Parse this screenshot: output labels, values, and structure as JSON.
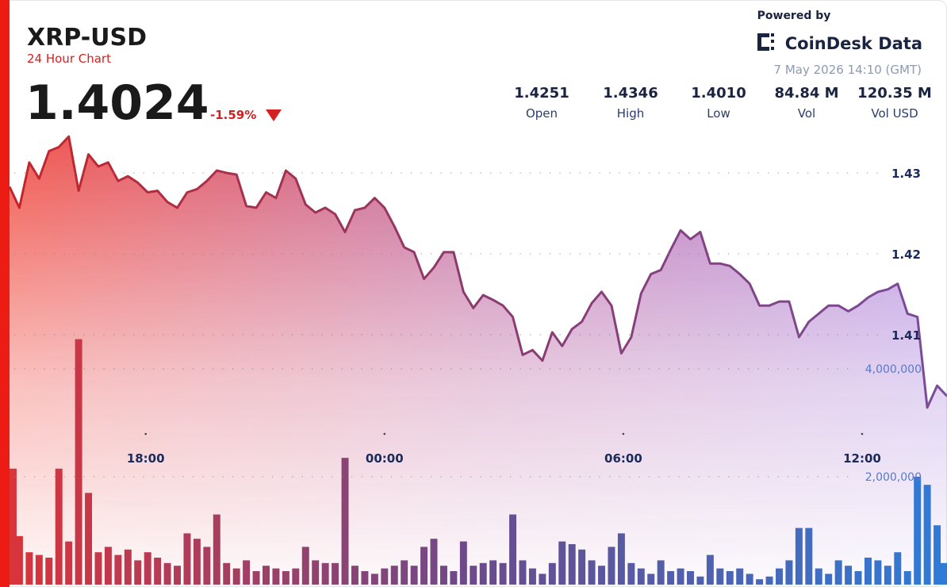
{
  "header": {
    "price": "1.4024",
    "change": "-1.59%",
    "stats": [
      {
        "value": "1.4251",
        "label": "Open"
      },
      {
        "value": "1.4346",
        "label": "High"
      },
      {
        "value": "1.4010",
        "label": "Low"
      },
      {
        "value": "84.84 M",
        "label": "Vol"
      },
      {
        "value": "120.35 M",
        "label": "Vol USD"
      }
    ],
    "powered_by": "Powered by",
    "brand": "CoinDesk Data",
    "timestamp": "7 May 2026 14:10 (GMT)"
  },
  "chart_data": {
    "type": "area",
    "title": "XRP-USD",
    "subtitle": "24 Hour Chart",
    "categories": [
      null,
      null,
      null,
      null,
      null,
      null,
      null,
      null,
      null,
      null,
      null,
      null,
      null,
      null,
      null,
      null,
      null,
      null,
      null,
      null,
      null,
      null,
      null,
      null,
      null,
      null,
      null,
      null,
      null,
      null,
      null,
      null,
      null,
      null,
      null,
      null,
      null,
      null,
      null,
      null,
      null,
      null,
      null,
      null,
      null,
      null,
      null,
      null,
      null,
      null,
      null,
      null,
      null,
      null,
      null,
      null,
      null,
      null,
      null,
      null,
      null,
      null,
      null,
      null,
      null,
      null,
      null,
      null,
      null,
      null,
      null,
      null,
      null,
      null,
      null,
      null,
      null,
      null,
      null,
      null,
      null,
      null,
      null,
      null,
      null,
      null,
      null,
      null,
      null,
      null,
      null,
      null,
      null,
      null,
      null,
      null
    ],
    "xticks": [
      {
        "value": 13.8,
        "label": "18:00"
      },
      {
        "value": 38,
        "label": "00:00"
      },
      {
        "value": 62.2,
        "label": "06:00"
      },
      {
        "value": 86.4,
        "label": "12:00"
      }
    ],
    "ylim": [
      1.3791,
      1.4352
    ],
    "yticks": [
      1.41,
      1.42,
      1.43
    ],
    "y2lim": [
      0,
      8410000
    ],
    "y2ticks": [
      {
        "value": 2000000,
        "label": "2,000,000"
      },
      {
        "value": 4000000,
        "label": "4,000,000"
      }
    ],
    "grid": true,
    "series": [
      {
        "type": "area",
        "colors": [
          "#c3262b",
          "#8c3a6e",
          "#7a4c9a"
        ],
        "values": [
          1.4283,
          1.4257,
          1.4313,
          1.4293,
          1.4327,
          1.4332,
          1.4345,
          1.4278,
          1.4323,
          1.4308,
          1.4313,
          1.429,
          1.4296,
          1.4288,
          1.4276,
          1.4278,
          1.4264,
          1.4257,
          1.4276,
          1.428,
          1.429,
          1.4303,
          1.43,
          1.4298,
          1.4259,
          1.4257,
          1.4276,
          1.4269,
          1.4303,
          1.4293,
          1.4261,
          1.4251,
          1.4257,
          1.4249,
          1.4227,
          1.4254,
          1.4257,
          1.4269,
          1.4257,
          1.4234,
          1.4208,
          1.4202,
          1.4169,
          1.4183,
          1.4202,
          1.4202,
          1.4153,
          1.4133,
          1.4149,
          1.4143,
          1.4136,
          1.4122,
          1.4075,
          1.4081,
          1.4068,
          1.4103,
          1.4086,
          1.4107,
          1.4116,
          1.4139,
          1.4153,
          1.4136,
          1.4077,
          1.4097,
          1.4151,
          1.4175,
          1.418,
          1.4205,
          1.4229,
          1.4218,
          1.4227,
          1.4188,
          1.4188,
          1.4185,
          1.4175,
          1.4163,
          1.4136,
          1.4136,
          1.4141,
          1.4141,
          1.4097,
          1.4116,
          1.4126,
          1.4136,
          1.4136,
          1.4129,
          1.4136,
          1.4146,
          1.4153,
          1.4156,
          1.4163,
          1.4126,
          1.4122,
          1.401,
          1.4037,
          1.4024
        ]
      },
      {
        "type": "bar",
        "axis": "y2",
        "colors": [
          "#d9343a",
          "#6b4a8c",
          "#2f7bd8"
        ],
        "values": [
          2150000,
          900000,
          600000,
          550000,
          500000,
          2150000,
          800000,
          4550000,
          1700000,
          600000,
          700000,
          550000,
          650000,
          450000,
          600000,
          500000,
          400000,
          350000,
          950000,
          850000,
          700000,
          1300000,
          400000,
          300000,
          450000,
          250000,
          350000,
          300000,
          250000,
          300000,
          700000,
          450000,
          400000,
          400000,
          2350000,
          350000,
          250000,
          200000,
          300000,
          350000,
          450000,
          350000,
          700000,
          850000,
          350000,
          250000,
          800000,
          350000,
          400000,
          450000,
          400000,
          1300000,
          450000,
          300000,
          200000,
          400000,
          800000,
          750000,
          650000,
          450000,
          350000,
          700000,
          950000,
          400000,
          300000,
          200000,
          450000,
          250000,
          300000,
          250000,
          150000,
          550000,
          300000,
          250000,
          300000,
          200000,
          100000,
          150000,
          300000,
          450000,
          1050000,
          1050000,
          300000,
          200000,
          450000,
          350000,
          250000,
          500000,
          450000,
          350000,
          600000,
          250000,
          2000000,
          1850000,
          1100000,
          400000
        ]
      }
    ]
  }
}
